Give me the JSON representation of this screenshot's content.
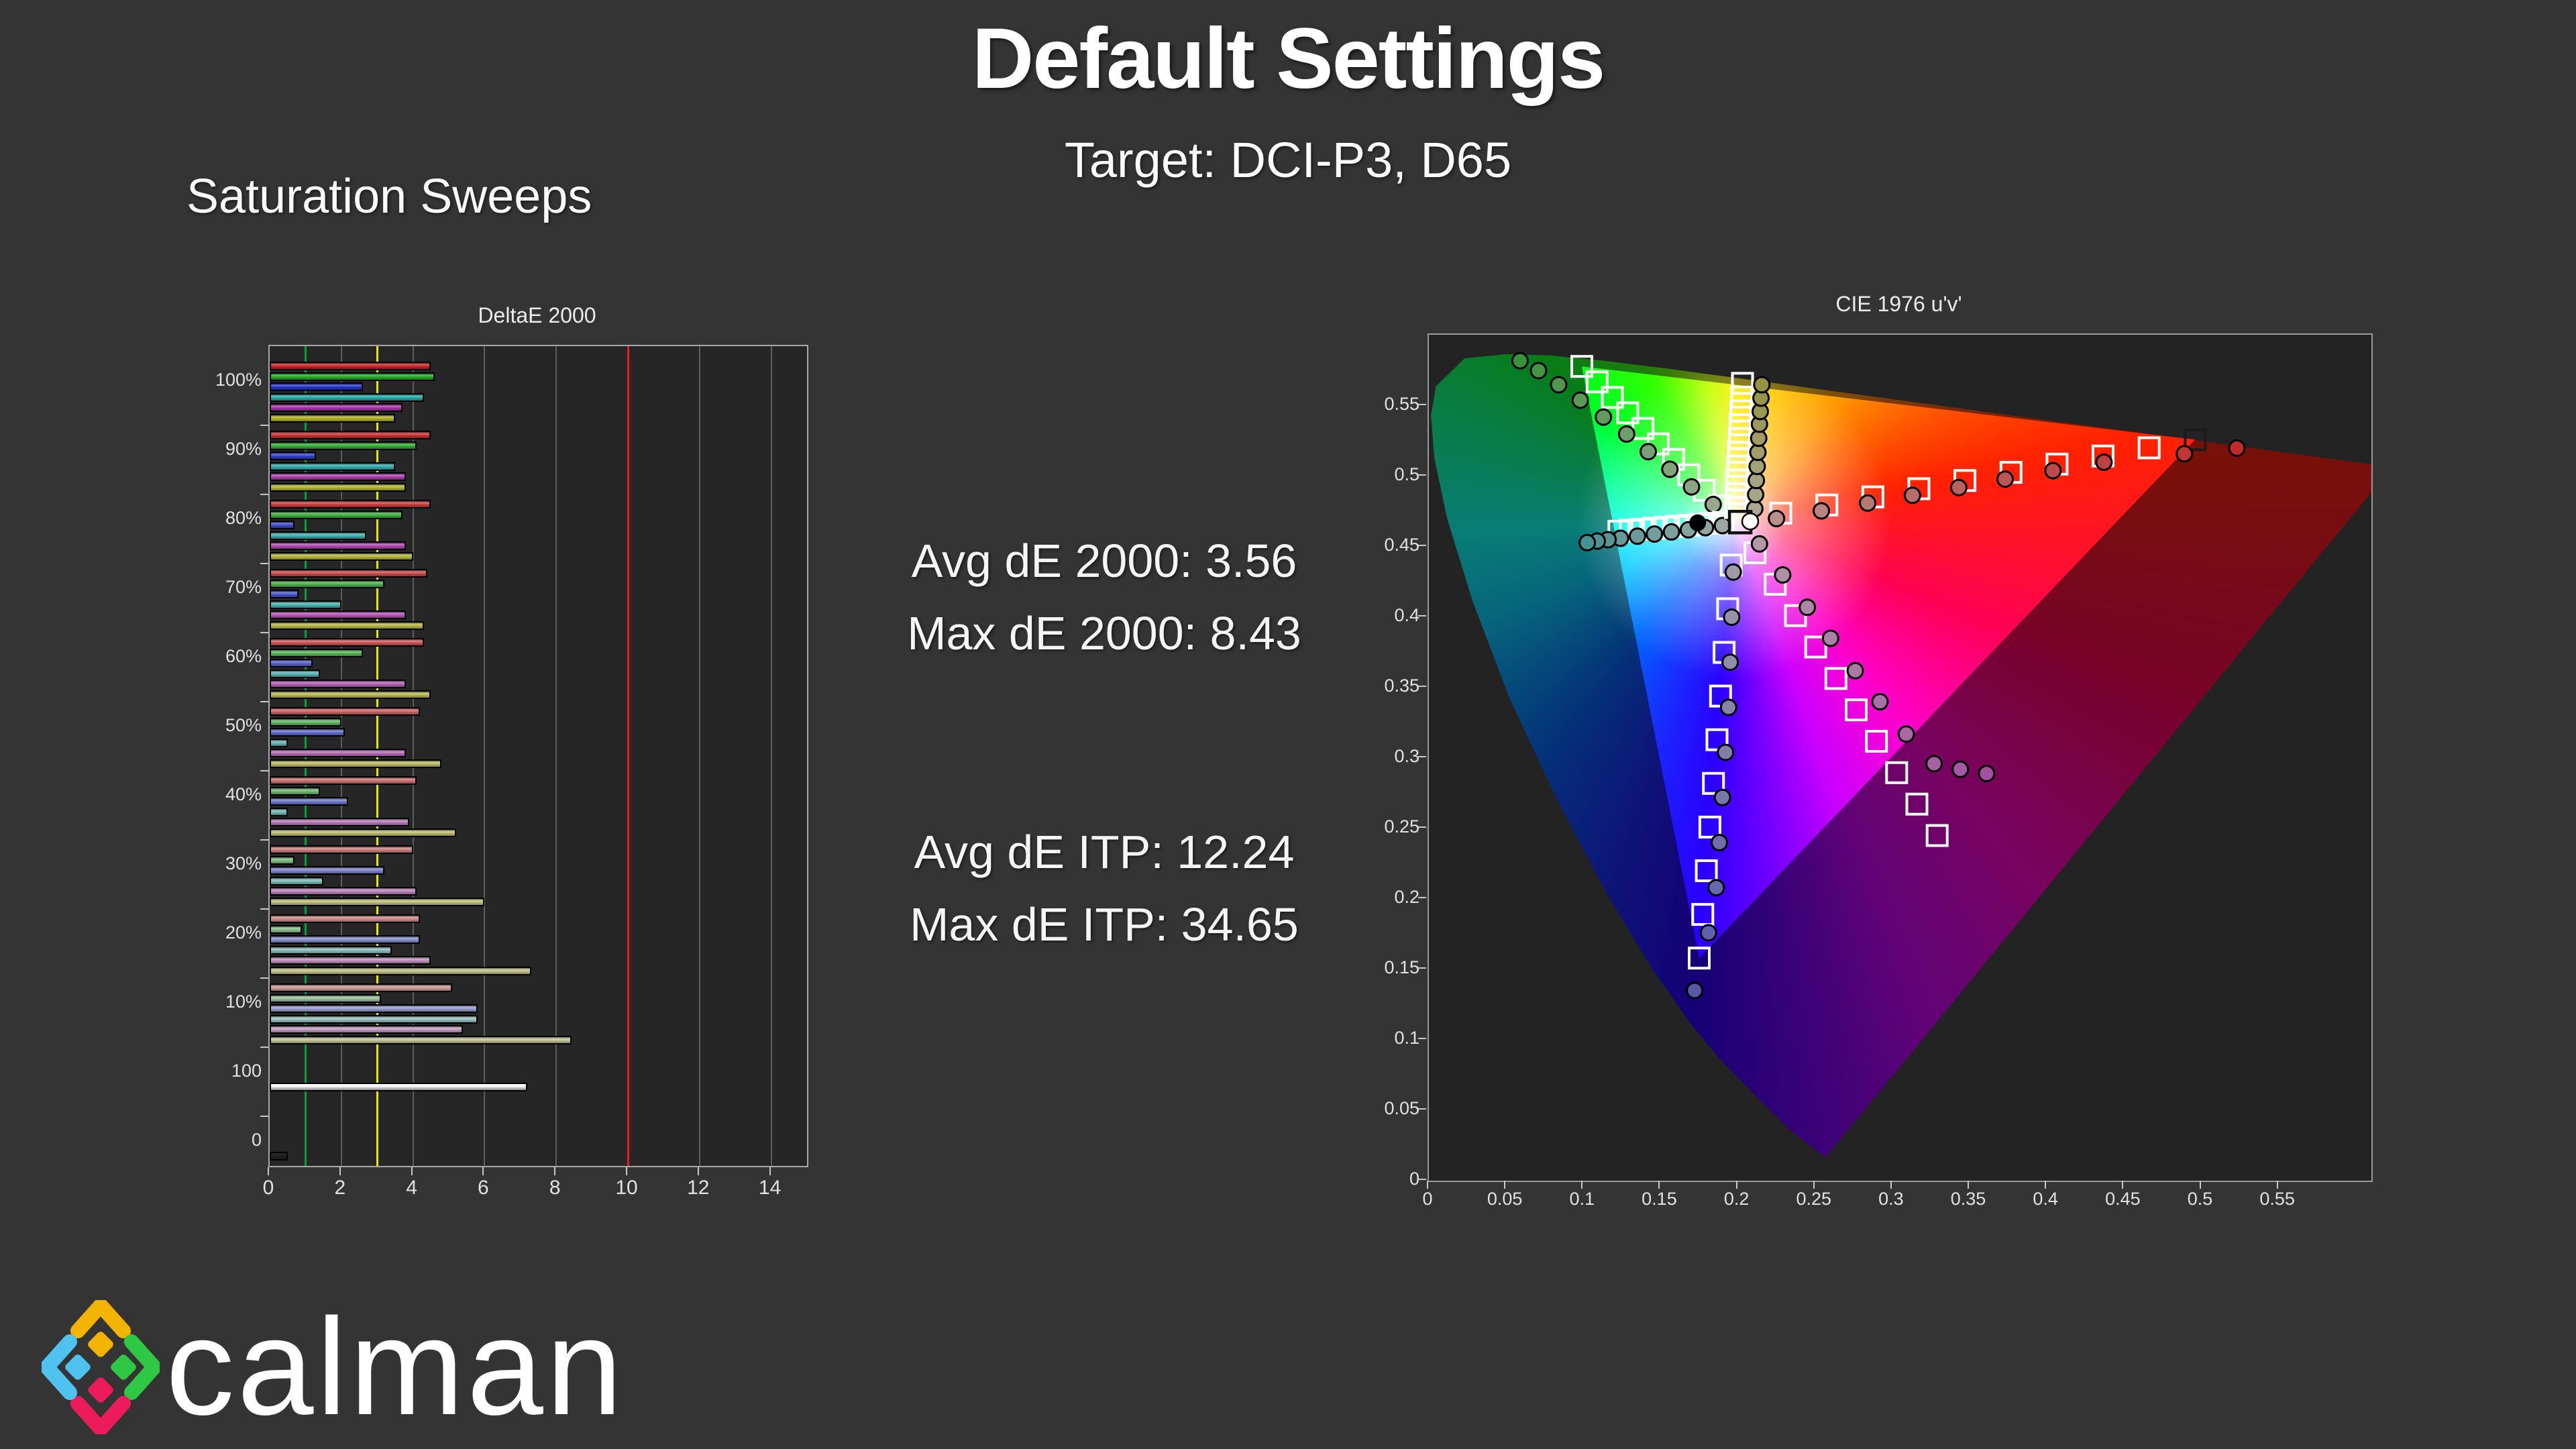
{
  "page": {
    "title": "Default Settings",
    "subtitle": "Target: DCI-P3, D65",
    "section_label": "Saturation Sweeps",
    "background": "#343434"
  },
  "stats": {
    "de2000": [
      "Avg dE 2000: 3.56",
      "Max dE 2000: 8.43"
    ],
    "deitp": [
      "Avg dE ITP: 12.24",
      "Max dE ITP: 34.65"
    ]
  },
  "logo": {
    "text": "calman",
    "mark_colors": {
      "yellow": "#F2B400",
      "blue": "#4FC2F0",
      "green": "#2EC845",
      "pink": "#EC1C5C"
    }
  },
  "chart_data": [
    {
      "type": "bar",
      "title": "DeltaE 2000",
      "orientation": "horizontal",
      "xlim": [
        0,
        15
      ],
      "x_ticks": [
        0,
        2,
        4,
        6,
        8,
        10,
        12,
        14
      ],
      "grid": true,
      "reference_lines": [
        {
          "value": 1,
          "color": "#00a33c"
        },
        {
          "value": 3,
          "color": "#e8e800"
        },
        {
          "value": 10,
          "color": "#e02020"
        }
      ],
      "categories": [
        "100%",
        "90%",
        "80%",
        "70%",
        "60%",
        "50%",
        "40%",
        "30%",
        "20%",
        "10%"
      ],
      "series": [
        {
          "name": "Red",
          "color": "#cc2222",
          "values": [
            4.5,
            4.5,
            4.5,
            4.4,
            4.3,
            4.2,
            4.1,
            4.0,
            4.2,
            5.1
          ]
        },
        {
          "name": "Green",
          "color": "#22aa22",
          "values": [
            4.6,
            4.1,
            3.7,
            3.2,
            2.6,
            2.0,
            1.4,
            0.7,
            0.9,
            3.1
          ]
        },
        {
          "name": "Blue",
          "color": "#2233cc",
          "values": [
            2.6,
            1.3,
            0.7,
            0.8,
            1.2,
            2.1,
            2.2,
            3.2,
            4.2,
            5.8
          ]
        },
        {
          "name": "Cyan",
          "color": "#23a8a8",
          "values": [
            4.3,
            3.5,
            2.7,
            2.0,
            1.4,
            0.5,
            0.5,
            1.5,
            3.4,
            5.8
          ]
        },
        {
          "name": "Magenta",
          "color": "#aa30aa",
          "values": [
            3.7,
            3.8,
            3.8,
            3.8,
            3.8,
            3.8,
            3.9,
            4.1,
            4.5,
            5.4
          ]
        },
        {
          "name": "Yellow",
          "color": "#b0b020",
          "values": [
            3.5,
            3.8,
            4.0,
            4.3,
            4.5,
            4.8,
            5.2,
            6.0,
            7.3,
            8.43
          ]
        }
      ],
      "luminance_bars": [
        {
          "label": "100",
          "value": 7.2,
          "style": "white"
        },
        {
          "label": "0",
          "value": 0.5,
          "style": "black"
        }
      ]
    },
    {
      "type": "scatter",
      "title": "CIE 1976 u'v'",
      "xlim": [
        0,
        0.61
      ],
      "ylim": [
        0,
        0.6
      ],
      "x_tick_labels": [
        "0",
        "0.05",
        "0.1",
        "0.15",
        "0.2",
        "0.25",
        "0.3",
        "0.35",
        "0.4",
        "0.45",
        "0.5",
        "0.55"
      ],
      "y_tick_labels": [
        "0",
        "0.05",
        "0.1",
        "0.15",
        "0.2",
        "0.25",
        "0.3",
        "0.35",
        "0.4",
        "0.45",
        "0.5",
        "0.55"
      ],
      "tick_step": 0.05,
      "white_point": {
        "u": 0.198,
        "v": 0.468
      },
      "gamut_triangle": {
        "red": [
          0.496,
          0.526
        ],
        "green": [
          0.099,
          0.578
        ],
        "blue": [
          0.175,
          0.158
        ]
      },
      "spectral_locus": [
        [
          0.2568,
          0.0165
        ],
        [
          0.2347,
          0.035
        ],
        [
          0.2161,
          0.0549
        ],
        [
          0.1877,
          0.0871
        ],
        [
          0.169,
          0.112
        ],
        [
          0.1441,
          0.151
        ],
        [
          0.1147,
          0.2044
        ],
        [
          0.0828,
          0.2708
        ],
        [
          0.0521,
          0.3427
        ],
        [
          0.0282,
          0.4117
        ],
        [
          0.0119,
          0.4698
        ],
        [
          0.0035,
          0.5131
        ],
        [
          0.0014,
          0.5432
        ],
        [
          0.0046,
          0.5639
        ],
        [
          0.0231,
          0.5837
        ],
        [
          0.0501,
          0.5867
        ],
        [
          0.0792,
          0.5857
        ],
        [
          0.1127,
          0.5821
        ],
        [
          0.1531,
          0.5766
        ],
        [
          0.2026,
          0.5693
        ],
        [
          0.2623,
          0.5604
        ],
        [
          0.3315,
          0.5501
        ],
        [
          0.4035,
          0.5393
        ],
        [
          0.4692,
          0.5296
        ],
        [
          0.5203,
          0.5219
        ],
        [
          0.583,
          0.5125
        ],
        [
          0.6234,
          0.5065
        ]
      ],
      "white_markers": {
        "target_square": [
          0.2015,
          0.4675
        ],
        "measured_circle": [
          0.208,
          0.468
        ],
        "reference_dot": [
          0.174,
          0.467
        ]
      },
      "sweeps": {
        "red": {
          "color": "#cf2f2f",
          "last_target_dark": true,
          "targets": [
            [
              0.2278,
              0.4738
            ],
            [
              0.2576,
              0.4796
            ],
            [
              0.2874,
              0.4854
            ],
            [
              0.3172,
              0.4912
            ],
            [
              0.347,
              0.497
            ],
            [
              0.3768,
              0.5028
            ],
            [
              0.4066,
              0.5086
            ],
            [
              0.4364,
              0.5144
            ],
            [
              0.4662,
              0.5202
            ],
            [
              0.496,
              0.526
            ]
          ],
          "measured": [
            [
              0.225,
              0.47
            ],
            [
              0.254,
              0.4755
            ],
            [
              0.284,
              0.481
            ],
            [
              0.313,
              0.4865
            ],
            [
              0.343,
              0.492
            ],
            [
              0.373,
              0.498
            ],
            [
              0.404,
              0.504
            ],
            [
              0.437,
              0.51
            ],
            [
              0.489,
              0.516
            ],
            [
              0.523,
              0.52
            ]
          ]
        },
        "green": {
          "color": "#3f9f3f",
          "targets": [
            [
              0.1881,
              0.479
            ],
            [
              0.1782,
              0.49
            ],
            [
              0.1683,
              0.501
            ],
            [
              0.1584,
              0.512
            ],
            [
              0.1485,
              0.523
            ],
            [
              0.1386,
              0.534
            ],
            [
              0.1287,
              0.545
            ],
            [
              0.1188,
              0.556
            ],
            [
              0.1089,
              0.567
            ],
            [
              0.099,
              0.578
            ]
          ],
          "measured": [
            [
              0.184,
              0.48
            ],
            [
              0.17,
              0.4925
            ],
            [
              0.156,
              0.505
            ],
            [
              0.142,
              0.5175
            ],
            [
              0.128,
              0.53
            ],
            [
              0.113,
              0.542
            ],
            [
              0.098,
              0.554
            ],
            [
              0.084,
              0.565
            ],
            [
              0.071,
              0.575
            ],
            [
              0.059,
              0.582
            ]
          ]
        },
        "blue": {
          "color": "#6060b8",
          "targets": [
            [
              0.1957,
              0.437
            ],
            [
              0.1934,
              0.406
            ],
            [
              0.1911,
              0.375
            ],
            [
              0.1888,
              0.344
            ],
            [
              0.1865,
              0.313
            ],
            [
              0.1842,
              0.282
            ],
            [
              0.1819,
              0.251
            ],
            [
              0.1796,
              0.22
            ],
            [
              0.1773,
              0.189
            ],
            [
              0.175,
              0.158
            ]
          ],
          "measured": [
            [
              0.197,
              0.432
            ],
            [
              0.196,
              0.4
            ],
            [
              0.195,
              0.368
            ],
            [
              0.194,
              0.336
            ],
            [
              0.192,
              0.304
            ],
            [
              0.19,
              0.272
            ],
            [
              0.188,
              0.24
            ],
            [
              0.186,
              0.208
            ],
            [
              0.181,
              0.176
            ],
            [
              0.172,
              0.135
            ]
          ]
        },
        "cyan": {
          "color": "#4a9f9f",
          "targets": [
            [
              0.1905,
              0.4673
            ],
            [
              0.183,
              0.4666
            ],
            [
              0.1755,
              0.4659
            ],
            [
              0.168,
              0.4652
            ],
            [
              0.1605,
              0.4645
            ],
            [
              0.153,
              0.4638
            ],
            [
              0.1455,
              0.4631
            ],
            [
              0.138,
              0.4624
            ],
            [
              0.1305,
              0.4617
            ],
            [
              0.123,
              0.461
            ]
          ],
          "measured": [
            [
              0.19,
              0.465
            ],
            [
              0.179,
              0.4635
            ],
            [
              0.168,
              0.462
            ],
            [
              0.157,
              0.4605
            ],
            [
              0.146,
              0.459
            ],
            [
              0.135,
              0.4575
            ],
            [
              0.124,
              0.456
            ],
            [
              0.116,
              0.455
            ],
            [
              0.109,
              0.454
            ],
            [
              0.1025,
              0.4529
            ]
          ]
        },
        "magenta": {
          "color": "#b058b0",
          "targets": [
            [
              0.2111,
              0.4457
            ],
            [
              0.2242,
              0.4234
            ],
            [
              0.2373,
              0.4011
            ],
            [
              0.2504,
              0.3788
            ],
            [
              0.2635,
              0.3565
            ],
            [
              0.2766,
              0.3342
            ],
            [
              0.2897,
              0.3119
            ],
            [
              0.3028,
              0.2896
            ],
            [
              0.3159,
              0.2673
            ],
            [
              0.329,
              0.245
            ]
          ],
          "measured": [
            [
              0.214,
              0.452
            ],
            [
              0.229,
              0.43
            ],
            [
              0.245,
              0.407
            ],
            [
              0.26,
              0.385
            ],
            [
              0.276,
              0.362
            ],
            [
              0.292,
              0.34
            ],
            [
              0.309,
              0.317
            ],
            [
              0.327,
              0.296
            ],
            [
              0.344,
              0.292
            ],
            [
              0.361,
              0.289
            ]
          ]
        },
        "yellow": {
          "color": "#a0a048",
          "targets": [
            [
              0.1985,
              0.4778
            ],
            [
              0.199,
              0.4876
            ],
            [
              0.1995,
              0.4974
            ],
            [
              0.2,
              0.5072
            ],
            [
              0.2005,
              0.517
            ],
            [
              0.201,
              0.5268
            ],
            [
              0.2015,
              0.5366
            ],
            [
              0.202,
              0.5464
            ],
            [
              0.2025,
              0.5562
            ],
            [
              0.203,
              0.566
            ]
          ],
          "measured": [
            [
              0.211,
              0.477
            ],
            [
              0.2115,
              0.487
            ],
            [
              0.212,
              0.497
            ],
            [
              0.2125,
              0.507
            ],
            [
              0.213,
              0.517
            ],
            [
              0.2135,
              0.527
            ],
            [
              0.214,
              0.537
            ],
            [
              0.2145,
              0.546
            ],
            [
              0.215,
              0.5555
            ],
            [
              0.2155,
              0.565
            ]
          ]
        }
      }
    }
  ]
}
